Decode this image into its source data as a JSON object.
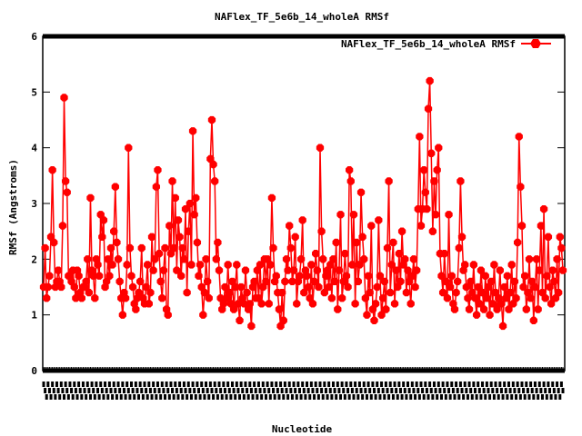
{
  "chart_data": {
    "type": "line",
    "title": "NAFlex_TF_5e6b_14_wholeA RMSf",
    "xlabel": "Nucleotide",
    "ylabel": "RMSf (Angstroms)",
    "ylim": [
      0,
      6
    ],
    "yticks": [
      "0",
      "1",
      "2",
      "3",
      "4",
      "5",
      "6"
    ],
    "legend_position": "top-right",
    "color": "#ff0000",
    "series": [
      {
        "name": "NAFlex_TF_5e6b_14_wholeA RMSf",
        "values": [
          1.5,
          2.2,
          1.3,
          1.5,
          1.7,
          2.4,
          3.6,
          2.3,
          1.5,
          1.6,
          1.8,
          1.6,
          1.5,
          2.6,
          4.9,
          3.4,
          3.2,
          1.7,
          1.7,
          1.6,
          1.8,
          1.5,
          1.3,
          1.8,
          1.7,
          1.4,
          1.3,
          1.5,
          1.5,
          1.6,
          2.0,
          1.4,
          3.1,
          1.8,
          1.7,
          1.3,
          2.0,
          1.9,
          1.7,
          2.8,
          2.4,
          2.7,
          1.5,
          1.6,
          2.0,
          1.7,
          2.2,
          1.9,
          2.5,
          3.3,
          2.3,
          2.0,
          1.6,
          1.3,
          1.0,
          1.4,
          1.3,
          1.9,
          4.0,
          2.2,
          1.7,
          1.5,
          1.2,
          1.1,
          1.3,
          1.4,
          1.6,
          2.2,
          1.3,
          1.2,
          1.5,
          1.9,
          1.2,
          1.4,
          2.4,
          1.8,
          2.0,
          3.3,
          3.6,
          2.1,
          1.6,
          1.3,
          1.8,
          2.2,
          1.1,
          1.0,
          2.6,
          2.1,
          3.4,
          2.2,
          3.1,
          1.8,
          2.7,
          2.4,
          1.7,
          2.2,
          2.0,
          2.9,
          1.4,
          2.5,
          3.0,
          1.9,
          4.3,
          2.8,
          3.1,
          2.3,
          1.7,
          1.9,
          1.5,
          1.0,
          1.4,
          2.0,
          1.6,
          1.3,
          3.8,
          4.5,
          3.7,
          3.4,
          2.0,
          2.3,
          1.8,
          1.3,
          1.1,
          1.2,
          1.5,
          1.3,
          1.9,
          1.4,
          1.2,
          1.6,
          1.1,
          1.5,
          1.9,
          1.2,
          0.9,
          1.5,
          1.3,
          1.2,
          1.8,
          1.4,
          1.1,
          1.2,
          0.8,
          1.5,
          1.6,
          1.3,
          1.8,
          1.3,
          1.9,
          1.2,
          1.5,
          2.0,
          1.6,
          2.0,
          1.2,
          1.9,
          3.1,
          2.2,
          1.6,
          1.7,
          1.4,
          1.1,
          0.8,
          1.4,
          0.9,
          1.6,
          2.0,
          1.8,
          2.6,
          2.2,
          1.6,
          1.8,
          2.4,
          1.2,
          1.6,
          1.7,
          2.0,
          2.7,
          1.4,
          1.8,
          1.7,
          1.5,
          1.3,
          1.9,
          1.2,
          1.6,
          2.1,
          1.8,
          1.5,
          4.0,
          2.5,
          2.0,
          1.4,
          1.7,
          1.8,
          1.5,
          1.9,
          1.3,
          2.0,
          1.6,
          2.3,
          1.1,
          1.8,
          2.8,
          1.3,
          1.6,
          2.1,
          1.7,
          1.5,
          3.6,
          3.4,
          1.9,
          2.8,
          1.2,
          2.3,
          1.6,
          1.9,
          3.2,
          2.4,
          2.0,
          1.3,
          1.0,
          1.7,
          1.4,
          2.6,
          1.1,
          0.9,
          1.2,
          1.5,
          2.7,
          1.7,
          1.0,
          1.3,
          1.6,
          1.1,
          2.2,
          3.4,
          1.4,
          1.9,
          2.3,
          1.2,
          1.8,
          1.5,
          2.1,
          1.6,
          2.5,
          1.9,
          2.0,
          1.4,
          1.8,
          1.6,
          1.2,
          1.7,
          2.0,
          1.5,
          1.8,
          2.9,
          4.2,
          2.6,
          2.9,
          3.6,
          3.2,
          2.9,
          4.7,
          5.2,
          3.9,
          2.5,
          3.4,
          2.8,
          3.6,
          4.0,
          2.1,
          1.7,
          1.4,
          2.1,
          1.6,
          1.3,
          2.8,
          1.5,
          1.7,
          1.2,
          1.1,
          1.4,
          1.6,
          2.2,
          3.4,
          2.4,
          1.8,
          1.9,
          1.5,
          1.3,
          1.1,
          1.6,
          1.4,
          1.9,
          1.3,
          1.0,
          1.5,
          1.2,
          1.8,
          1.4,
          1.1,
          1.7,
          1.3,
          1.5,
          1.0,
          1.6,
          1.2,
          1.9,
          1.4,
          1.1,
          1.3,
          1.8,
          1.2,
          0.8,
          1.5,
          1.3,
          1.7,
          1.1,
          1.4,
          1.9,
          1.2,
          1.6,
          1.3,
          2.3,
          4.2,
          3.3,
          2.6,
          1.5,
          1.7,
          1.1,
          1.4,
          2.0,
          1.3,
          1.6,
          0.9,
          1.5,
          2.0,
          1.1,
          1.8,
          2.6,
          1.4,
          2.9,
          1.3,
          1.7,
          2.4,
          1.5,
          1.2,
          1.8,
          1.6,
          1.3,
          2.0,
          1.4,
          2.4,
          2.2,
          1.8
        ]
      }
    ]
  }
}
